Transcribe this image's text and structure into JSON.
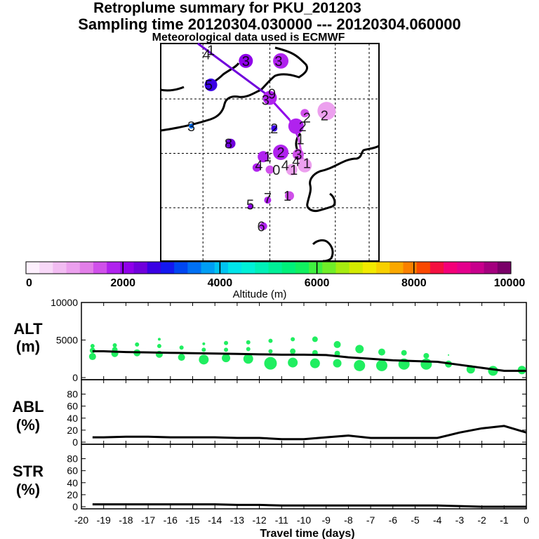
{
  "header": {
    "title": "Retroplume summary for PKU_201203",
    "sampling": "Sampling time   20120304.030000 --- 20120304.060000",
    "met": "Meteorological data used is ECMWF"
  },
  "colorbar": {
    "label": "Altitude (m)",
    "ticks": [
      "0",
      "2000",
      "4000",
      "6000",
      "8000",
      "10000"
    ],
    "range": [
      0,
      10000
    ],
    "colors": [
      "#fdf0fd",
      "#f8d8f8",
      "#f2bcf2",
      "#eca0ee",
      "#e27ee8",
      "#d050ea",
      "#b022ee",
      "#9000ea",
      "#7000dc",
      "#3a00e4",
      "#1418f0",
      "#0046f2",
      "#0070f4",
      "#009ef4",
      "#00c4f2",
      "#00e4ea",
      "#00f0d8",
      "#00f0b8",
      "#00f098",
      "#00f07a",
      "#10f060",
      "#40f040",
      "#70ee28",
      "#a6ec10",
      "#d4ea00",
      "#f2ea00",
      "#f8d000",
      "#faa800",
      "#fa8000",
      "#fa4800",
      "#f41040",
      "#f40078",
      "#e4008c",
      "#c8008c",
      "#a4007e",
      "#7a0068"
    ]
  },
  "map": {
    "labels": [
      {
        "text": "1",
        "lon": 0.23,
        "lat": 0.03
      },
      {
        "text": "4",
        "lon": 0.21,
        "lat": 0.05
      },
      {
        "text": "3",
        "lon": 0.39,
        "lat": 0.08
      },
      {
        "text": "3",
        "lon": 0.54,
        "lat": 0.08
      },
      {
        "text": "5",
        "lon": 0.22,
        "lat": 0.19
      },
      {
        "text": "9",
        "lon": 0.51,
        "lat": 0.23
      },
      {
        "text": "3",
        "lon": 0.48,
        "lat": 0.26
      },
      {
        "text": "3",
        "lon": 0.14,
        "lat": 0.38
      },
      {
        "text": "2",
        "lon": 0.75,
        "lat": 0.33
      },
      {
        "text": "2",
        "lon": 0.67,
        "lat": 0.34
      },
      {
        "text": "2",
        "lon": 0.65,
        "lat": 0.38
      },
      {
        "text": "2",
        "lon": 0.52,
        "lat": 0.39
      },
      {
        "text": "8",
        "lon": 0.31,
        "lat": 0.46
      },
      {
        "text": "1",
        "lon": 0.64,
        "lat": 0.44
      },
      {
        "text": "1",
        "lon": 0.49,
        "lat": 0.52
      },
      {
        "text": "2",
        "lon": 0.55,
        "lat": 0.5
      },
      {
        "text": "3",
        "lon": 0.63,
        "lat": 0.51
      },
      {
        "text": "4",
        "lon": 0.45,
        "lat": 0.56
      },
      {
        "text": "0",
        "lon": 0.53,
        "lat": 0.58
      },
      {
        "text": "1",
        "lon": 0.61,
        "lat": 0.58
      },
      {
        "text": "1",
        "lon": 0.67,
        "lat": 0.55
      },
      {
        "text": "4",
        "lon": 0.62,
        "lat": 0.54
      },
      {
        "text": "4",
        "lon": 0.57,
        "lat": 0.56
      },
      {
        "text": "5",
        "lon": 0.41,
        "lat": 0.74
      },
      {
        "text": "7",
        "lon": 0.49,
        "lat": 0.71
      },
      {
        "text": "1",
        "lon": 0.58,
        "lat": 0.7
      },
      {
        "text": "6",
        "lon": 0.46,
        "lat": 0.84
      }
    ],
    "clusters": [
      {
        "lon": 0.39,
        "lat": 0.08,
        "alt": 2200,
        "size": 1.0
      },
      {
        "lon": 0.55,
        "lat": 0.08,
        "alt": 1800,
        "size": 1.1
      },
      {
        "lon": 0.23,
        "lat": 0.19,
        "alt": 2500,
        "size": 0.9
      },
      {
        "lon": 0.5,
        "lat": 0.25,
        "alt": 1900,
        "size": 1.0
      },
      {
        "lon": 0.14,
        "lat": 0.38,
        "alt": 3600,
        "size": 0.35
      },
      {
        "lon": 0.76,
        "lat": 0.31,
        "alt": 1100,
        "size": 1.3
      },
      {
        "lon": 0.66,
        "lat": 0.32,
        "alt": 1500,
        "size": 0.6
      },
      {
        "lon": 0.62,
        "lat": 0.38,
        "alt": 1900,
        "size": 1.1
      },
      {
        "lon": 0.52,
        "lat": 0.39,
        "alt": 2600,
        "size": 0.45
      },
      {
        "lon": 0.32,
        "lat": 0.46,
        "alt": 2400,
        "size": 0.7
      },
      {
        "lon": 0.55,
        "lat": 0.5,
        "alt": 1700,
        "size": 1.1
      },
      {
        "lon": 0.47,
        "lat": 0.52,
        "alt": 1800,
        "size": 0.8
      },
      {
        "lon": 0.63,
        "lat": 0.51,
        "alt": 1500,
        "size": 0.8
      },
      {
        "lon": 0.66,
        "lat": 0.56,
        "alt": 1000,
        "size": 1.0
      },
      {
        "lon": 0.6,
        "lat": 0.58,
        "alt": 900,
        "size": 0.8
      },
      {
        "lon": 0.5,
        "lat": 0.58,
        "alt": 1600,
        "size": 0.6
      },
      {
        "lon": 0.44,
        "lat": 0.57,
        "alt": 1700,
        "size": 0.6
      },
      {
        "lon": 0.59,
        "lat": 0.7,
        "alt": 1600,
        "size": 0.65
      },
      {
        "lon": 0.49,
        "lat": 0.72,
        "alt": 1800,
        "size": 0.5
      },
      {
        "lon": 0.41,
        "lat": 0.75,
        "alt": 2000,
        "size": 0.35
      },
      {
        "lon": 0.47,
        "lat": 0.84,
        "alt": 1800,
        "size": 0.55
      }
    ],
    "trajectory": [
      {
        "lon": 0.17,
        "lat": 0.0,
        "alt": 2300
      },
      {
        "lon": 0.48,
        "lat": 0.23,
        "alt": 2200
      },
      {
        "lon": 0.59,
        "lat": 0.35,
        "alt": 2000
      },
      {
        "lon": 0.63,
        "lat": 0.43,
        "alt": 1700
      },
      {
        "lon": 0.65,
        "lat": 0.53,
        "alt": 1200
      },
      {
        "lon": 0.66,
        "lat": 0.57,
        "alt": 900
      }
    ]
  },
  "chart_data": [
    {
      "type": "line",
      "title": "ALT",
      "ylabel": "(m)",
      "ylim": [
        0,
        10000
      ],
      "yticks": [
        "10000",
        "5000",
        "0"
      ],
      "x": [
        -19.5,
        -19,
        -18,
        -17,
        -16,
        -15,
        -14,
        -13,
        -12,
        -11,
        -10,
        -9,
        -8,
        -7,
        -6,
        -5,
        -4,
        -3,
        -2,
        -1,
        0
      ],
      "y": [
        3500,
        3500,
        3400,
        3350,
        3300,
        3250,
        3200,
        3150,
        3100,
        3050,
        3050,
        3000,
        2700,
        2500,
        2300,
        2200,
        2100,
        1700,
        1300,
        900,
        900
      ],
      "points": [
        {
          "x": -19.5,
          "alt": 3600,
          "r": 4
        },
        {
          "x": -19.5,
          "alt": 2800,
          "r": 5
        },
        {
          "x": -19.5,
          "alt": 4200,
          "r": 3
        },
        {
          "x": -18.5,
          "alt": 4300,
          "r": 3
        },
        {
          "x": -18.5,
          "alt": 3700,
          "r": 4
        },
        {
          "x": -18.5,
          "alt": 3200,
          "r": 5
        },
        {
          "x": -17.5,
          "alt": 4400,
          "r": 3
        },
        {
          "x": -17.5,
          "alt": 3300,
          "r": 5
        },
        {
          "x": -16.5,
          "alt": 5100,
          "r": 2
        },
        {
          "x": -16.5,
          "alt": 4200,
          "r": 3
        },
        {
          "x": -16.5,
          "alt": 3100,
          "r": 5
        },
        {
          "x": -15.5,
          "alt": 4000,
          "r": 3
        },
        {
          "x": -15.5,
          "alt": 2700,
          "r": 5
        },
        {
          "x": -14.5,
          "alt": 4500,
          "r": 2
        },
        {
          "x": -14.5,
          "alt": 3700,
          "r": 3
        },
        {
          "x": -14.5,
          "alt": 2400,
          "r": 7
        },
        {
          "x": -13.5,
          "alt": 4600,
          "r": 3
        },
        {
          "x": -13.5,
          "alt": 3700,
          "r": 3
        },
        {
          "x": -13.5,
          "alt": 2600,
          "r": 6
        },
        {
          "x": -12.5,
          "alt": 4700,
          "r": 3
        },
        {
          "x": -12.5,
          "alt": 3800,
          "r": 3
        },
        {
          "x": -12.5,
          "alt": 2500,
          "r": 7
        },
        {
          "x": -11.5,
          "alt": 4900,
          "r": 3
        },
        {
          "x": -11.5,
          "alt": 3500,
          "r": 3
        },
        {
          "x": -11.5,
          "alt": 1900,
          "r": 9
        },
        {
          "x": -10.5,
          "alt": 5100,
          "r": 3
        },
        {
          "x": -10.5,
          "alt": 3500,
          "r": 4
        },
        {
          "x": -10.5,
          "alt": 2000,
          "r": 7
        },
        {
          "x": -9.5,
          "alt": 5100,
          "r": 4
        },
        {
          "x": -9.5,
          "alt": 3300,
          "r": 4
        },
        {
          "x": -9.5,
          "alt": 1900,
          "r": 7
        },
        {
          "x": -8.5,
          "alt": 4400,
          "r": 5
        },
        {
          "x": -8.5,
          "alt": 3200,
          "r": 4
        },
        {
          "x": -8.5,
          "alt": 1900,
          "r": 6
        },
        {
          "x": -7.5,
          "alt": 3800,
          "r": 6
        },
        {
          "x": -7.5,
          "alt": 1600,
          "r": 8
        },
        {
          "x": -6.5,
          "alt": 3400,
          "r": 5
        },
        {
          "x": -6.5,
          "alt": 1600,
          "r": 8
        },
        {
          "x": -5.5,
          "alt": 3300,
          "r": 4
        },
        {
          "x": -5.5,
          "alt": 1800,
          "r": 8
        },
        {
          "x": -4.5,
          "alt": 2900,
          "r": 4
        },
        {
          "x": -4.5,
          "alt": 1800,
          "r": 8
        },
        {
          "x": -3.5,
          "alt": 3000,
          "r": 1
        },
        {
          "x": -3.5,
          "alt": 1800,
          "r": 5
        },
        {
          "x": -2.5,
          "alt": 1100,
          "r": 6
        },
        {
          "x": -1.5,
          "alt": 900,
          "r": 7
        },
        {
          "x": -0.2,
          "alt": 1000,
          "r": 6
        }
      ]
    },
    {
      "type": "line",
      "title": "ABL",
      "ylabel": "(%)",
      "ylim": [
        0,
        90
      ],
      "yticks": [
        "80",
        "60",
        "40",
        "20",
        "0"
      ],
      "x": [
        -19.5,
        -19,
        -18,
        -17,
        -16,
        -15,
        -14,
        -13,
        -12,
        -11,
        -10,
        -9,
        -8,
        -7,
        -6,
        -5,
        -4,
        -3,
        -2,
        -1,
        0
      ],
      "y": [
        8,
        8,
        9,
        9,
        8,
        8,
        8,
        7,
        7,
        5,
        5,
        8,
        11,
        7,
        7,
        7,
        7,
        16,
        23,
        27,
        16
      ]
    },
    {
      "type": "line",
      "title": "STR",
      "ylabel": "(%)",
      "ylim": [
        0,
        90
      ],
      "yticks": [
        "80",
        "60",
        "40",
        "20",
        "0"
      ],
      "x": [
        -19.5,
        -19,
        -18,
        -17,
        -16,
        -15,
        -14,
        -13,
        -12,
        -11,
        -10,
        -9,
        -8,
        -7,
        -6,
        -5,
        -4,
        -3,
        -2,
        -1,
        0
      ],
      "y": [
        4,
        4,
        4,
        4,
        4,
        4,
        4,
        3,
        3,
        2,
        2,
        2,
        2,
        2,
        2,
        2,
        2,
        1,
        0,
        0,
        0
      ]
    }
  ],
  "xaxis": {
    "label": "Travel time (days)",
    "ticks": [
      "-20",
      "-19",
      "-18",
      "-17",
      "-16",
      "-15",
      "-14",
      "-13",
      "-12",
      "-11",
      "-10",
      "-9",
      "-8",
      "-7",
      "-6",
      "-5",
      "-4",
      "-3",
      "-2",
      "-1",
      "0"
    ]
  }
}
